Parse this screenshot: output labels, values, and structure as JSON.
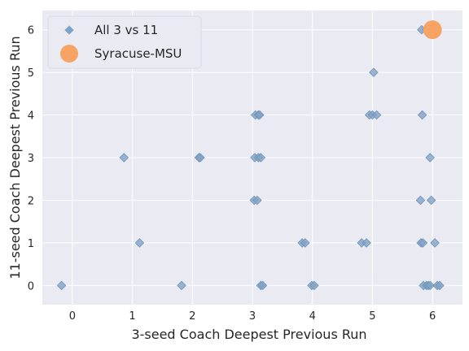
{
  "chart_data": {
    "type": "scatter",
    "xlabel": "3-seed Coach Deepest Previous Run",
    "ylabel": "11-seed Coach Deepest Previous Run",
    "xlim": [
      -0.5,
      6.5
    ],
    "ylim": [
      -0.45,
      6.45
    ],
    "xticks": [
      "0",
      "1",
      "2",
      "3",
      "4",
      "5",
      "6"
    ],
    "yticks": [
      "0",
      "1",
      "2",
      "3",
      "4",
      "5",
      "6"
    ],
    "grid": true,
    "legend_position": "top-left",
    "series": [
      {
        "name": "All 3 vs 11",
        "marker": "diamond",
        "color": "#7fa3c6",
        "points": [
          [
            -0.18,
            0
          ],
          [
            1.82,
            0
          ],
          [
            3.14,
            0
          ],
          [
            3.17,
            0
          ],
          [
            3.99,
            0
          ],
          [
            4.03,
            0
          ],
          [
            5.85,
            0
          ],
          [
            5.9,
            0
          ],
          [
            5.93,
            0
          ],
          [
            5.96,
            0
          ],
          [
            6.08,
            0
          ],
          [
            6.12,
            0
          ],
          [
            1.12,
            1
          ],
          [
            3.83,
            1
          ],
          [
            3.88,
            1
          ],
          [
            4.82,
            1
          ],
          [
            4.9,
            1
          ],
          [
            5.81,
            1
          ],
          [
            5.84,
            1
          ],
          [
            6.04,
            1
          ],
          [
            3.03,
            2
          ],
          [
            3.08,
            2
          ],
          [
            5.8,
            2
          ],
          [
            5.98,
            2
          ],
          [
            0.86,
            3
          ],
          [
            2.11,
            3
          ],
          [
            2.13,
            3
          ],
          [
            3.04,
            3
          ],
          [
            3.1,
            3
          ],
          [
            3.14,
            3
          ],
          [
            5.96,
            3
          ],
          [
            3.05,
            4
          ],
          [
            3.1,
            4
          ],
          [
            3.12,
            4
          ],
          [
            4.95,
            4
          ],
          [
            5.0,
            4
          ],
          [
            5.07,
            4
          ],
          [
            5.83,
            4
          ],
          [
            5.02,
            5
          ],
          [
            5.82,
            6
          ],
          [
            5.9,
            6
          ],
          [
            6.02,
            6
          ]
        ]
      },
      {
        "name": "Syracuse-MSU",
        "marker": "circle",
        "color": "#f7a364",
        "points": [
          [
            6.0,
            6.0
          ]
        ]
      }
    ]
  },
  "colors": {
    "plot_background": "#eaeaf2",
    "grid": "#ffffff",
    "diamond_fill": "#7fa3c6",
    "circle_fill": "#f7a364"
  }
}
